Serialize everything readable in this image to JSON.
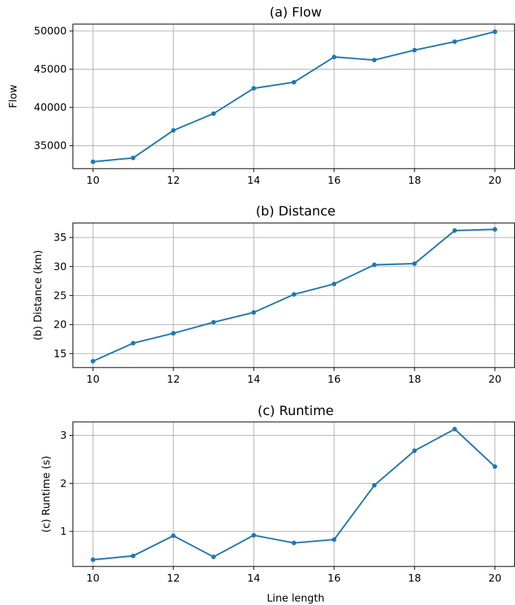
{
  "colors": {
    "series": "#1f77b4"
  },
  "chart_data": [
    {
      "type": "line",
      "title": "(a) Flow",
      "xlabel": "",
      "ylabel": "Flow",
      "x": [
        10,
        11,
        12,
        13,
        14,
        15,
        16,
        17,
        18,
        19,
        20
      ],
      "series": [
        {
          "values": [
            32900,
            33400,
            37000,
            39200,
            42500,
            43300,
            46600,
            46200,
            47500,
            48600,
            49900
          ]
        }
      ],
      "xlim": [
        9.5,
        20.5
      ],
      "ylim": [
        32000,
        50900
      ],
      "xticks": [
        10,
        12,
        14,
        16,
        18,
        20
      ],
      "yticks": [
        35000,
        40000,
        45000,
        50000
      ],
      "grid": true
    },
    {
      "type": "line",
      "title": "(b) Distance",
      "xlabel": "",
      "ylabel": "(b) Distance (km)",
      "x": [
        10,
        11,
        12,
        13,
        14,
        15,
        16,
        17,
        18,
        19,
        20
      ],
      "series": [
        {
          "values": [
            13.7,
            16.8,
            18.5,
            20.4,
            22.1,
            25.2,
            27.0,
            30.3,
            30.5,
            36.2,
            36.4
          ]
        }
      ],
      "xlim": [
        9.5,
        20.5
      ],
      "ylim": [
        12.6,
        37.5
      ],
      "xticks": [
        10,
        12,
        14,
        16,
        18,
        20
      ],
      "yticks": [
        15,
        20,
        25,
        30,
        35
      ],
      "grid": true
    },
    {
      "type": "line",
      "title": "(c) Runtime",
      "xlabel": "Line length",
      "ylabel": "(c) Runtime (s)",
      "x": [
        10,
        11,
        12,
        13,
        14,
        15,
        16,
        17,
        18,
        19,
        20
      ],
      "series": [
        {
          "values": [
            0.41,
            0.49,
            0.91,
            0.47,
            0.92,
            0.76,
            0.83,
            1.96,
            2.68,
            3.13,
            2.35
          ]
        }
      ],
      "xlim": [
        9.5,
        20.5
      ],
      "ylim": [
        0.27,
        3.28
      ],
      "xticks": [
        10,
        12,
        14,
        16,
        18,
        20
      ],
      "yticks": [
        1,
        2,
        3
      ],
      "grid": true
    }
  ]
}
